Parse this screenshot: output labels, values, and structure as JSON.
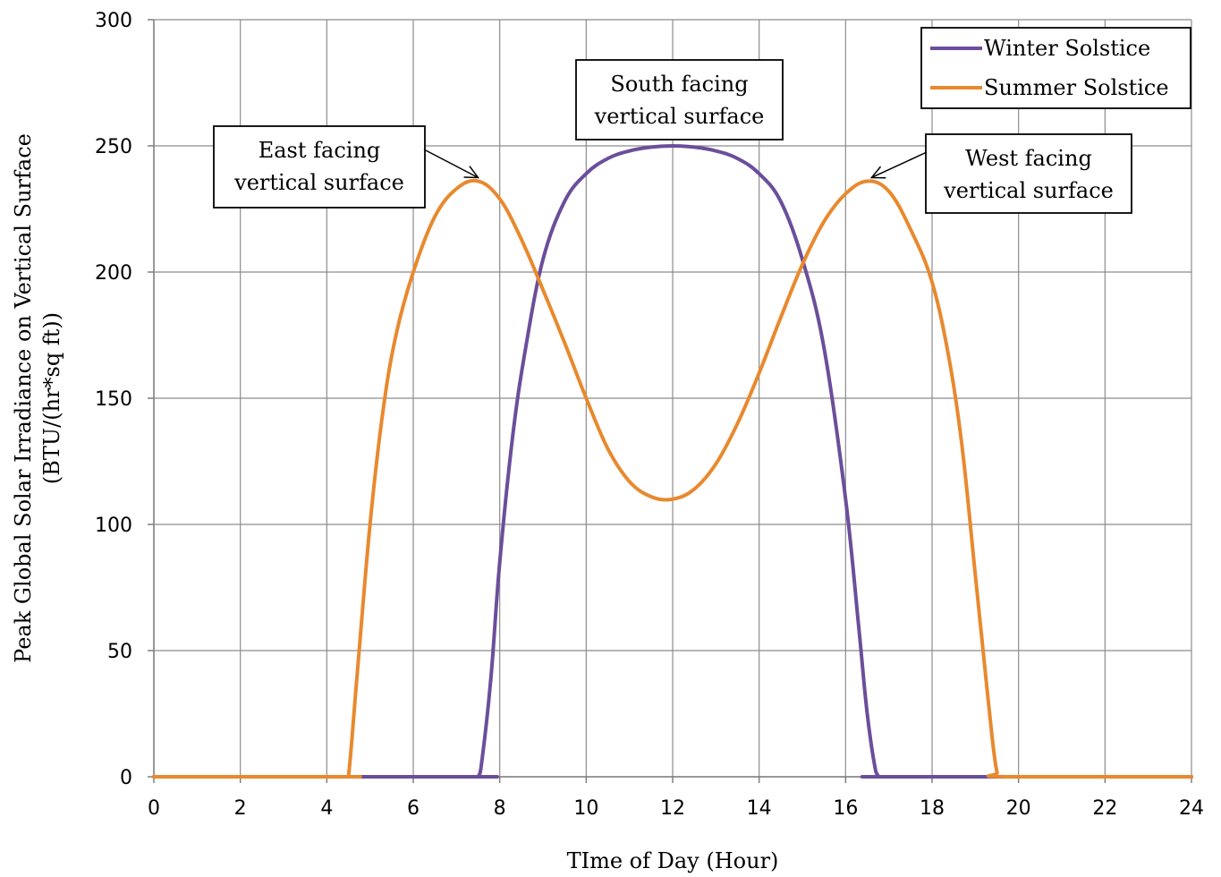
{
  "chart_data": {
    "type": "line",
    "xlabel": "TIme of Day (Hour)",
    "ylabel_lines": [
      "Peak Global Solar Irradiance on Vertical Surface",
      "(BTU/(hr*sq ft))"
    ],
    "xlim": [
      0,
      24
    ],
    "ylim": [
      0,
      300
    ],
    "xticks": [
      0,
      2,
      4,
      6,
      8,
      10,
      12,
      14,
      16,
      18,
      20,
      22,
      24
    ],
    "yticks": [
      0,
      50,
      100,
      150,
      200,
      250,
      300
    ],
    "grid": true,
    "legend_position": "top-right",
    "series": [
      {
        "name": "Winter Solstice",
        "color": "#6B4E9B",
        "x": [
          0,
          7.3,
          7.5,
          7.6,
          7.8,
          8.0,
          8.3,
          8.6,
          9.0,
          9.5,
          10.0,
          10.5,
          11.0,
          11.5,
          12.0,
          12.5,
          13.0,
          13.5,
          14.0,
          14.5,
          15.0,
          15.5,
          16.0,
          16.3,
          16.5,
          16.7,
          16.8,
          17.0,
          24
        ],
        "y": [
          0,
          0,
          0,
          8,
          40,
          85,
          135,
          170,
          205,
          228,
          239,
          245,
          248,
          249.5,
          250,
          249.5,
          248,
          245,
          239,
          228,
          205,
          170,
          110,
          60,
          25,
          2,
          0,
          0,
          0
        ]
      },
      {
        "name": "Summer Solstice",
        "color": "#E8892E",
        "x": [
          0,
          4.4,
          4.5,
          4.7,
          5.0,
          5.3,
          5.6,
          6.0,
          6.5,
          7.0,
          7.5,
          8.0,
          8.5,
          9.0,
          9.5,
          10.0,
          10.5,
          11.0,
          11.5,
          12.0,
          12.5,
          13.0,
          13.5,
          14.0,
          14.5,
          15.0,
          15.5,
          16.0,
          16.5,
          17.0,
          17.5,
          18.0,
          18.4,
          18.7,
          19.0,
          19.3,
          19.5,
          19.7,
          24
        ],
        "y": [
          0,
          0,
          0,
          40,
          100,
          145,
          175,
          200,
          222,
          233,
          236,
          229,
          213,
          193,
          172,
          150,
          130,
          117,
          111,
          110,
          114,
          124,
          140,
          160,
          182,
          203,
          220,
          231,
          236,
          232,
          217,
          196,
          165,
          130,
          80,
          30,
          2,
          0,
          0
        ]
      }
    ],
    "annotations": [
      {
        "lines": [
          "East facing",
          "vertical surface"
        ],
        "target_x": 7.5,
        "target_y": 236
      },
      {
        "lines": [
          "South facing",
          "vertical surface"
        ]
      },
      {
        "lines": [
          "West facing",
          "vertical surface"
        ],
        "target_x": 16.6,
        "target_y": 236
      }
    ]
  }
}
